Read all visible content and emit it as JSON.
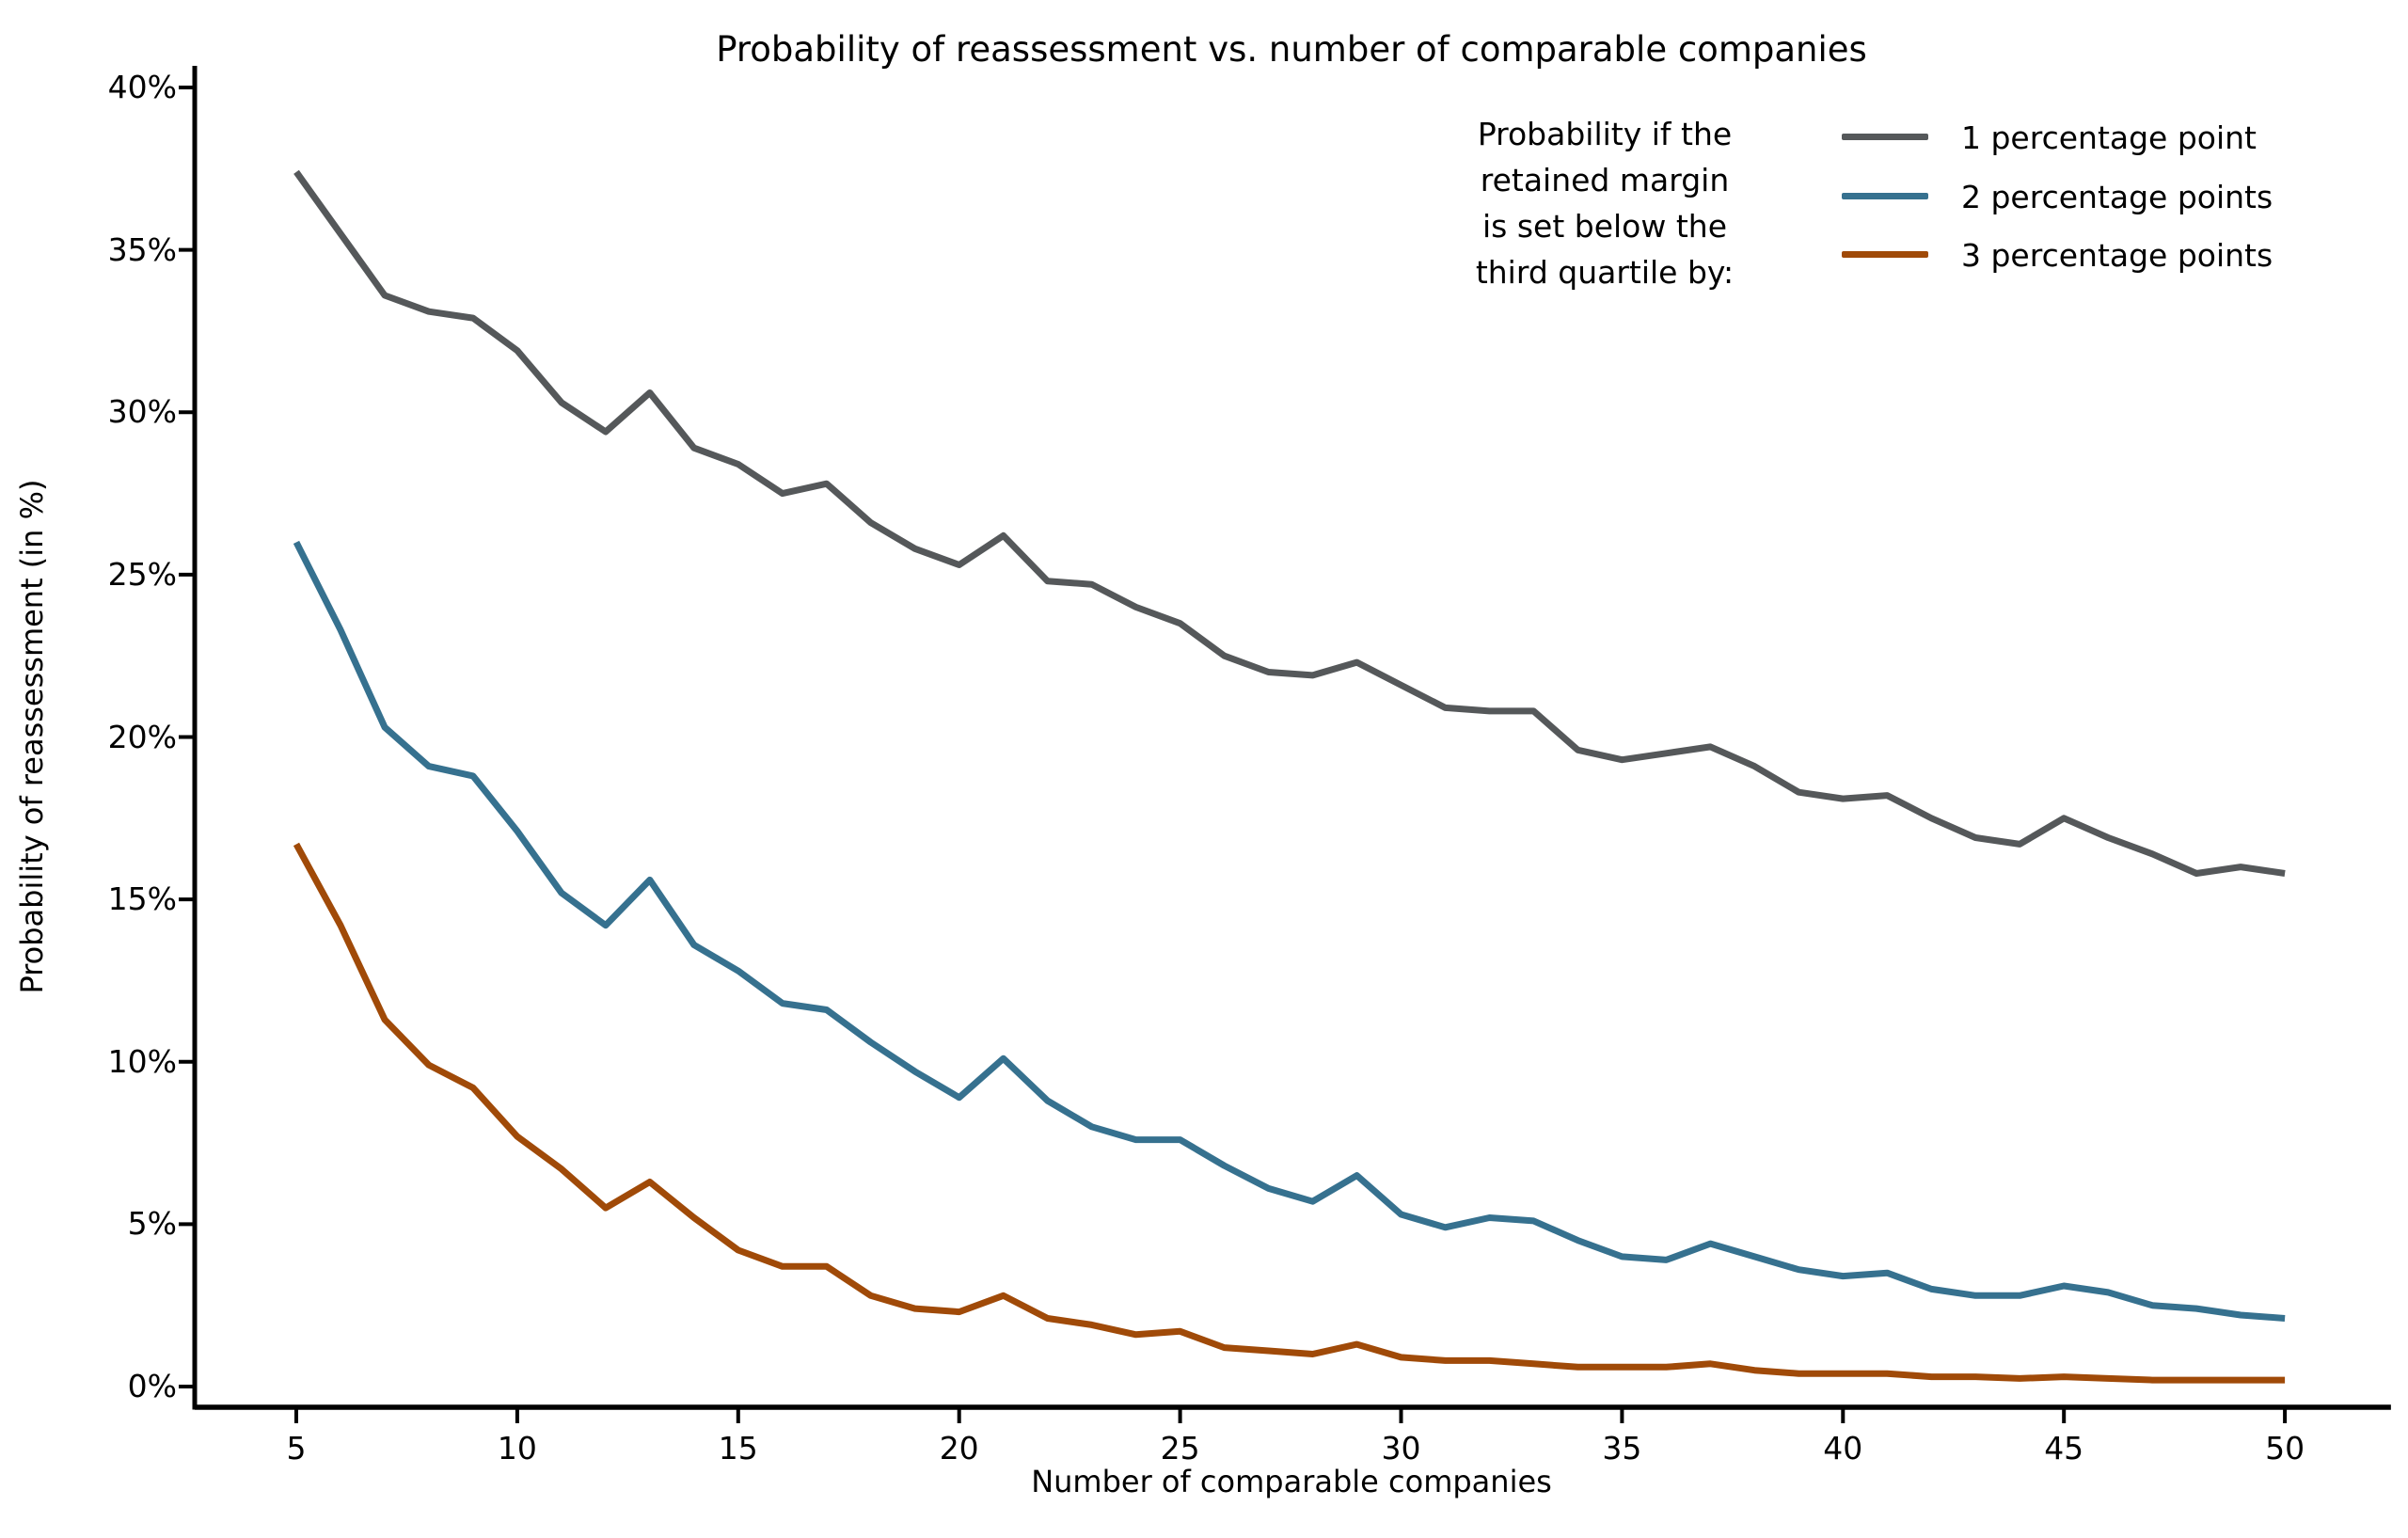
{
  "chart_data": {
    "type": "line",
    "title": "Probability of reassessment vs. number of comparable companies",
    "xlabel": "Number of comparable companies",
    "ylabel": "Probability of reassessment (in %)",
    "legend_title_lines": [
      "Probability if the",
      "retained margin",
      "is set below the",
      "third quartile by:"
    ],
    "legend_position": "upper right",
    "grid": false,
    "x": [
      5,
      6,
      7,
      8,
      9,
      10,
      11,
      12,
      13,
      14,
      15,
      16,
      17,
      18,
      19,
      20,
      21,
      22,
      23,
      24,
      25,
      26,
      27,
      28,
      29,
      30,
      31,
      32,
      33,
      34,
      35,
      36,
      37,
      38,
      39,
      40,
      41,
      42,
      43,
      44,
      45,
      46,
      47,
      48,
      49,
      50
    ],
    "x_ticks": [
      5,
      10,
      15,
      20,
      25,
      30,
      35,
      40,
      45,
      50
    ],
    "y_ticks": [
      0,
      5,
      10,
      15,
      20,
      25,
      30,
      35,
      40
    ],
    "y_tick_suffix": "%",
    "xlim": [
      2.7,
      52.4
    ],
    "ylim": [
      0,
      40
    ],
    "series": [
      {
        "name": "1 percentage point",
        "color": "#55585A",
        "values": [
          37.4,
          35.5,
          33.6,
          33.1,
          32.9,
          31.9,
          30.3,
          29.4,
          30.6,
          28.9,
          28.4,
          27.5,
          27.8,
          26.6,
          25.8,
          25.3,
          26.2,
          24.8,
          24.7,
          24.0,
          23.5,
          22.5,
          22.0,
          21.9,
          22.3,
          21.6,
          20.9,
          20.8,
          20.8,
          19.6,
          19.3,
          19.5,
          19.7,
          19.1,
          18.3,
          18.1,
          18.2,
          17.5,
          16.9,
          16.7,
          17.5,
          16.9,
          16.4,
          15.8,
          16.0,
          15.8
        ]
      },
      {
        "name": "2 percentage points",
        "color": "#36718F",
        "values": [
          26.0,
          23.3,
          20.3,
          19.1,
          18.8,
          17.1,
          15.2,
          14.2,
          15.6,
          13.6,
          12.8,
          11.8,
          11.6,
          10.6,
          9.7,
          8.9,
          10.1,
          8.8,
          8.0,
          7.6,
          7.6,
          6.8,
          6.1,
          5.7,
          6.5,
          5.3,
          4.9,
          5.2,
          5.1,
          4.5,
          4.0,
          3.9,
          4.4,
          4.0,
          3.6,
          3.4,
          3.5,
          3.0,
          2.8,
          2.8,
          3.1,
          2.9,
          2.5,
          2.4,
          2.2,
          2.1
        ]
      },
      {
        "name": "3 percentage points",
        "color": "#A04A08",
        "values": [
          16.7,
          14.2,
          11.3,
          9.9,
          9.2,
          7.7,
          6.7,
          5.5,
          6.3,
          5.2,
          4.2,
          3.7,
          3.7,
          2.8,
          2.4,
          2.3,
          2.8,
          2.1,
          1.9,
          1.6,
          1.7,
          1.2,
          1.1,
          1.0,
          1.3,
          0.9,
          0.8,
          0.8,
          0.7,
          0.6,
          0.6,
          0.6,
          0.7,
          0.5,
          0.4,
          0.4,
          0.4,
          0.3,
          0.3,
          0.25,
          0.3,
          0.25,
          0.2,
          0.2,
          0.2,
          0.2
        ]
      }
    ],
    "axis_color": "#000000",
    "background_color": "#ffffff"
  }
}
